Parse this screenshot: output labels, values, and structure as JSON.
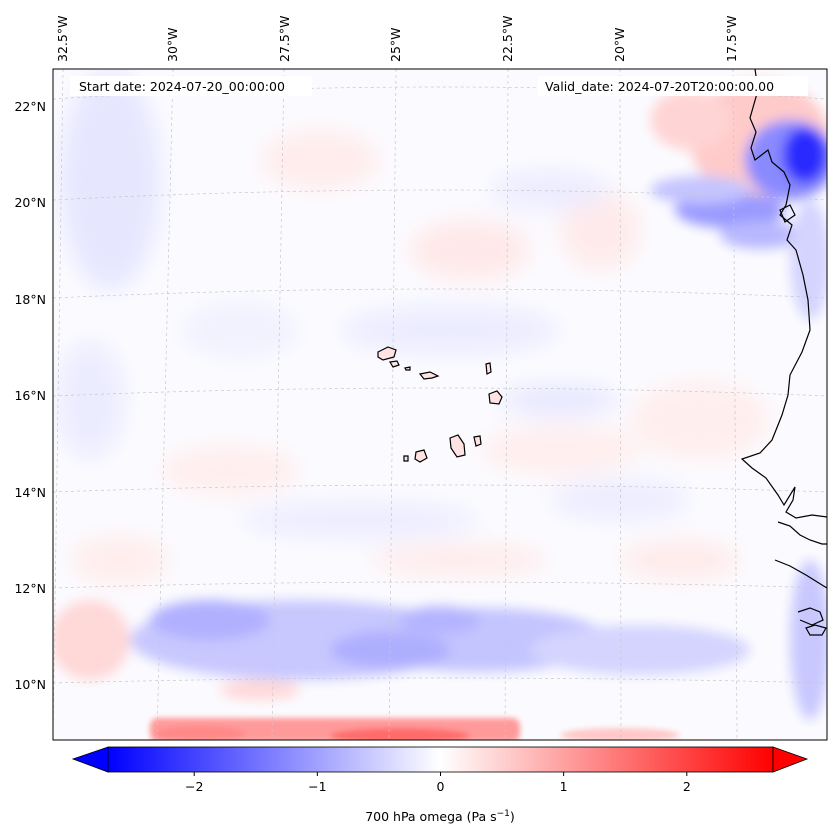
{
  "map": {
    "start_date": "Start date: 2024-07-20_00:00:00",
    "valid_date": "Valid_date: 2024-07-20T20:00:00.00",
    "lon_labels": [
      "32.5°W",
      "30°W",
      "27.5°W",
      "25°W",
      "22.5°W",
      "20°W",
      "17.5°W"
    ],
    "lat_labels": [
      "22°N",
      "20°N",
      "18°N",
      "16°N",
      "14°N",
      "12°N",
      "10°N"
    ],
    "field_name": "700 hPa omega",
    "colors": {
      "negative": "#0000ff",
      "zero": "#ffffff",
      "positive": "#ff0000",
      "coastline": "#000000",
      "gridline": "#c8c8c8"
    }
  },
  "colorbar": {
    "title": "700 hPa omega (Pa s",
    "title_exp": "−1",
    "title_end": ")",
    "min": -2.7,
    "max": 2.7,
    "tick_values": [
      -2,
      -1,
      0,
      1,
      2
    ],
    "tick_labels": [
      "−2",
      "−1",
      "0",
      "1",
      "2"
    ],
    "extend": "both"
  }
}
